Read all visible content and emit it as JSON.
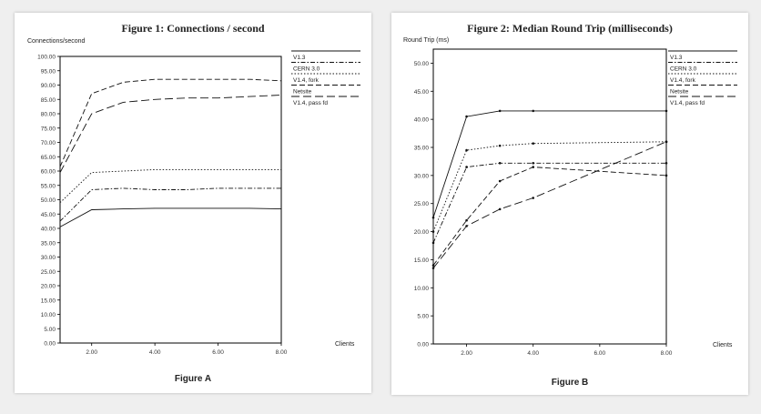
{
  "figure_a": {
    "caption": "Figure A",
    "chart_data": {
      "type": "line",
      "title": "Figure 1: Connections / second",
      "ylabel": "Connections/second",
      "xlabel": "Clients",
      "ylim": [
        0,
        100
      ],
      "y_ticks": [
        "0.00",
        "5.00",
        "10.00",
        "15.00",
        "20.00",
        "25.00",
        "30.00",
        "35.00",
        "40.00",
        "45.00",
        "50.00",
        "55.00",
        "60.00",
        "65.00",
        "70.00",
        "75.00",
        "80.00",
        "85.00",
        "90.00",
        "95.00",
        "100.00"
      ],
      "x_ticks": [
        "2.00",
        "4.00",
        "6.00",
        "8.00"
      ],
      "legend_position": "right",
      "series": [
        {
          "name": "V1.3",
          "dash": "solid",
          "x": [
            1,
            2,
            3,
            4,
            5,
            6,
            7,
            8
          ],
          "values": [
            40.5,
            46.5,
            46.8,
            47.0,
            47.0,
            47.0,
            47.0,
            46.8
          ]
        },
        {
          "name": "CERN 3.0",
          "dash": "dashdot",
          "x": [
            1,
            2,
            3,
            4,
            5,
            6,
            7,
            8
          ],
          "values": [
            42.5,
            53.5,
            54.0,
            53.5,
            53.5,
            54.0,
            54.0,
            54.0
          ]
        },
        {
          "name": "V1.4, fork",
          "dash": "dotted",
          "x": [
            1,
            2,
            3,
            4,
            5,
            6,
            7,
            8
          ],
          "values": [
            49.0,
            59.5,
            60.0,
            60.5,
            60.5,
            60.5,
            60.5,
            60.5
          ]
        },
        {
          "name": "Netsite",
          "dash": "dashed",
          "x": [
            1,
            2,
            3,
            4,
            5,
            6,
            7,
            8
          ],
          "values": [
            61.5,
            87.0,
            91.0,
            92.0,
            92.0,
            92.0,
            92.0,
            91.5
          ]
        },
        {
          "name": "V1.4, pass fd",
          "dash": "longdash",
          "x": [
            1,
            2,
            3,
            4,
            5,
            6,
            7,
            8
          ],
          "values": [
            59.5,
            80.0,
            84.0,
            85.0,
            85.5,
            85.5,
            86.0,
            86.5
          ]
        }
      ]
    }
  },
  "figure_b": {
    "caption": "Figure B",
    "chart_data": {
      "type": "line",
      "title": "Figure 2: Median Round Trip (milliseconds)",
      "ylabel": "Round Trip (ms)",
      "xlabel": "Clients",
      "ylim": [
        0,
        52.5
      ],
      "y_ticks": [
        "0.00",
        "5.00",
        "10.00",
        "15.00",
        "20.00",
        "25.00",
        "30.00",
        "35.00",
        "40.00",
        "45.00",
        "50.00"
      ],
      "x_ticks": [
        "2.00",
        "4.00",
        "6.00",
        "8.00"
      ],
      "legend_position": "right",
      "series": [
        {
          "name": "V1.3",
          "dash": "solid",
          "x": [
            1,
            2,
            3,
            4,
            8
          ],
          "values": [
            22.5,
            40.5,
            41.5,
            41.5,
            41.5
          ]
        },
        {
          "name": "CERN 3.0",
          "dash": "dashdot",
          "x": [
            1,
            2,
            3,
            4,
            8
          ],
          "values": [
            18.0,
            31.5,
            32.2,
            32.2,
            32.2
          ]
        },
        {
          "name": "V1.4, fork",
          "dash": "dotted",
          "x": [
            1,
            2,
            3,
            4,
            8
          ],
          "values": [
            20.0,
            34.5,
            35.3,
            35.7,
            36.0
          ]
        },
        {
          "name": "Netsite",
          "dash": "dashed",
          "x": [
            1,
            2,
            3,
            4,
            8
          ],
          "values": [
            14.0,
            22.0,
            29.0,
            31.5,
            30.0
          ]
        },
        {
          "name": "V1.4, pass fd",
          "dash": "longdash",
          "x": [
            1,
            2,
            3,
            4,
            8
          ],
          "values": [
            13.5,
            21.0,
            24.0,
            26.0,
            36.0
          ]
        }
      ]
    }
  }
}
